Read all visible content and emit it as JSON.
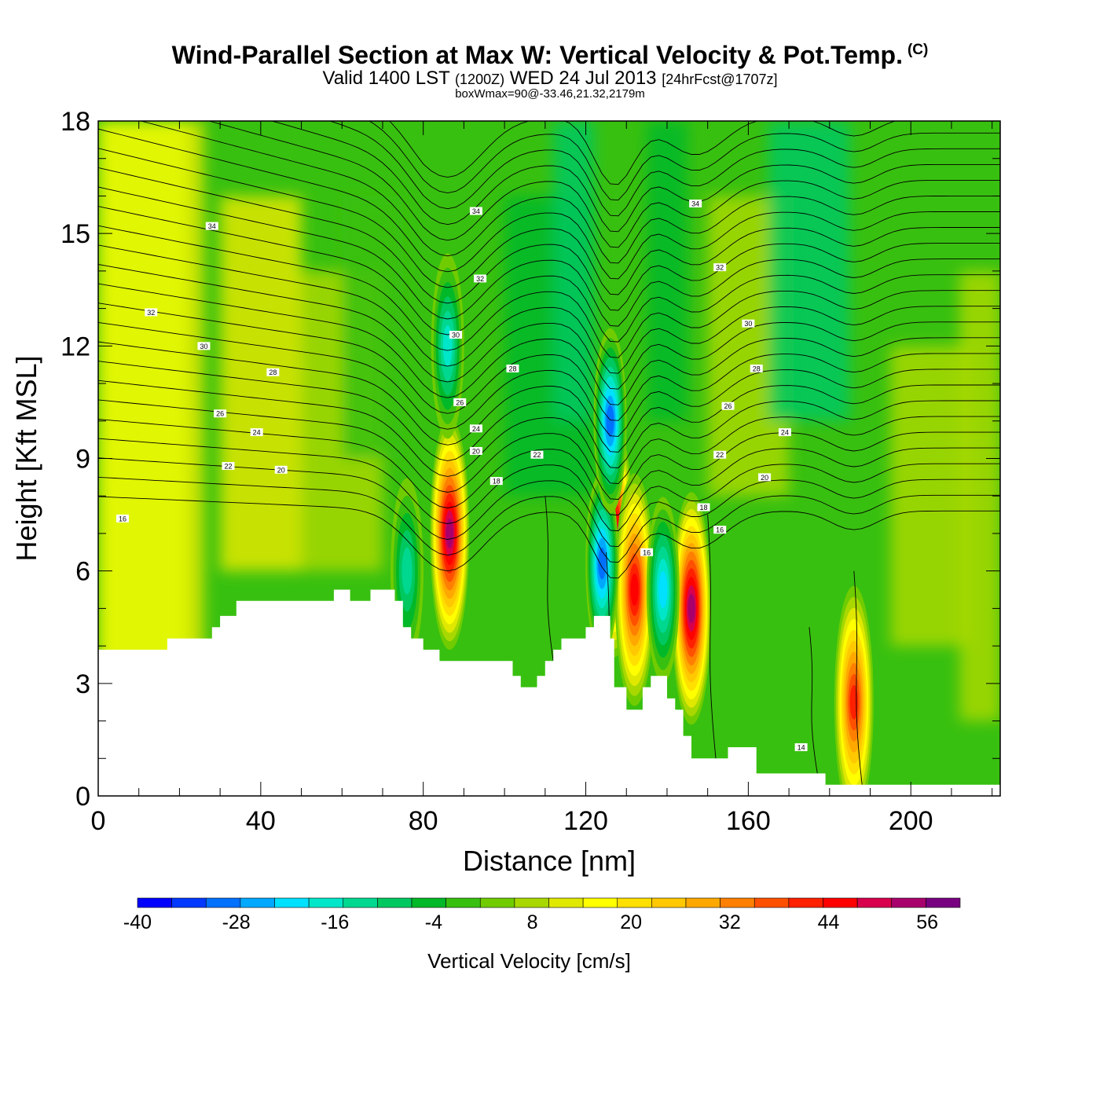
{
  "header": {
    "title": "Wind-Parallel Section at Max W: Vertical Velocity & Pot.Temp.",
    "copyright_mark": "(C)",
    "valid_prefix": "Valid 1400 LST",
    "valid_utc": "(1200Z)",
    "valid_date": "WED 24 Jul 2013",
    "forecast_tag": "[24hrFcst@1707z]",
    "box_info": "boxWmax=90@-33.46,21.32,2179m"
  },
  "chart_data": {
    "type": "heatmap",
    "xlabel": "Distance [nm]",
    "ylabel": "Height [Kft MSL]",
    "xlim": [
      0,
      222
    ],
    "ylim": [
      0,
      18
    ],
    "x_ticks": [
      0,
      40,
      80,
      120,
      160,
      200
    ],
    "y_ticks": [
      0,
      3,
      6,
      9,
      12,
      15,
      18
    ],
    "colorbar": {
      "label": "Vertical Velocity [cm/s]",
      "range": [
        -40,
        60
      ],
      "step": 4,
      "tick_labels": [
        "-40",
        "-28",
        "-16",
        "-4",
        "8",
        "20",
        "32",
        "44",
        "56"
      ],
      "colors": [
        "#0000ff",
        "#0038ff",
        "#0070ff",
        "#00a8ff",
        "#00e0ff",
        "#00e6c8",
        "#00d890",
        "#00c860",
        "#00b828",
        "#38c010",
        "#70cc00",
        "#a8d800",
        "#e0e800",
        "#ffff00",
        "#ffe000",
        "#ffc800",
        "#ffa800",
        "#ff8000",
        "#ff5000",
        "#ff2000",
        "#ff0000",
        "#d8004c",
        "#a8006c",
        "#780080"
      ]
    },
    "terrain_profile": [
      [
        0,
        3.9
      ],
      [
        17,
        3.9
      ],
      [
        17,
        4.2
      ],
      [
        28,
        4.2
      ],
      [
        28,
        4.5
      ],
      [
        30,
        4.5
      ],
      [
        30,
        4.8
      ],
      [
        34,
        4.8
      ],
      [
        34,
        5.2
      ],
      [
        58,
        5.2
      ],
      [
        58,
        5.5
      ],
      [
        62,
        5.5
      ],
      [
        62,
        5.2
      ],
      [
        67,
        5.2
      ],
      [
        67,
        5.5
      ],
      [
        73,
        5.5
      ],
      [
        73,
        5.2
      ],
      [
        75,
        5.2
      ],
      [
        75,
        4.5
      ],
      [
        77,
        4.5
      ],
      [
        77,
        4.2
      ],
      [
        80,
        4.2
      ],
      [
        80,
        3.9
      ],
      [
        84,
        3.9
      ],
      [
        84,
        3.6
      ],
      [
        102,
        3.6
      ],
      [
        102,
        3.2
      ],
      [
        104,
        3.2
      ],
      [
        104,
        2.9
      ],
      [
        108,
        2.9
      ],
      [
        108,
        3.2
      ],
      [
        110,
        3.2
      ],
      [
        110,
        3.6
      ],
      [
        112,
        3.6
      ],
      [
        112,
        3.9
      ],
      [
        114,
        3.9
      ],
      [
        114,
        4.2
      ],
      [
        120,
        4.2
      ],
      [
        120,
        4.5
      ],
      [
        122,
        4.5
      ],
      [
        122,
        4.8
      ],
      [
        126,
        4.8
      ],
      [
        126,
        4.2
      ],
      [
        127,
        4.2
      ],
      [
        127,
        2.9
      ],
      [
        130,
        2.9
      ],
      [
        130,
        2.3
      ],
      [
        134,
        2.3
      ],
      [
        134,
        2.9
      ],
      [
        136,
        2.9
      ],
      [
        136,
        3.2
      ],
      [
        140,
        3.2
      ],
      [
        140,
        2.6
      ],
      [
        142,
        2.6
      ],
      [
        142,
        2.3
      ],
      [
        144,
        2.3
      ],
      [
        144,
        1.6
      ],
      [
        146,
        1.6
      ],
      [
        146,
        1.0
      ],
      [
        155,
        1.0
      ],
      [
        155,
        1.3
      ],
      [
        162,
        1.3
      ],
      [
        162,
        0.6
      ],
      [
        179,
        0.6
      ],
      [
        179,
        0.3
      ],
      [
        222,
        0.3
      ]
    ],
    "w_cores": [
      {
        "x": 86.5,
        "y": 7.0,
        "peak": 48,
        "note": "updraft"
      },
      {
        "x": 127,
        "y": 6.8,
        "peak": 46,
        "note": "updraft"
      },
      {
        "x": 132,
        "y": 5.5,
        "peak": 40,
        "note": "updraft"
      },
      {
        "x": 146,
        "y": 5.0,
        "peak": 48,
        "note": "updraft"
      },
      {
        "x": 186,
        "y": 2.5,
        "peak": 36,
        "note": "updraft"
      },
      {
        "x": 124,
        "y": 6.2,
        "peak": -30,
        "note": "downdraft"
      },
      {
        "x": 126,
        "y": 10.0,
        "peak": -30,
        "note": "downdraft"
      },
      {
        "x": 139,
        "y": 5.5,
        "peak": -24,
        "note": "downdraft"
      },
      {
        "x": 86,
        "y": 12.0,
        "peak": -20,
        "note": "downdraft"
      },
      {
        "x": 76,
        "y": 6.0,
        "peak": -16,
        "note": "downdraft"
      }
    ],
    "contour_labels": [
      {
        "x": 6,
        "y": 7.4,
        "text": "16"
      },
      {
        "x": 32,
        "y": 8.8,
        "text": "22"
      },
      {
        "x": 45,
        "y": 8.7,
        "text": "20"
      },
      {
        "x": 39,
        "y": 9.7,
        "text": "24"
      },
      {
        "x": 30,
        "y": 10.2,
        "text": "26"
      },
      {
        "x": 43,
        "y": 11.3,
        "text": "28"
      },
      {
        "x": 26,
        "y": 12.0,
        "text": "30"
      },
      {
        "x": 13,
        "y": 12.9,
        "text": "32"
      },
      {
        "x": 28,
        "y": 15.2,
        "text": "34"
      },
      {
        "x": 93,
        "y": 15.6,
        "text": "34"
      },
      {
        "x": 94,
        "y": 13.8,
        "text": "32"
      },
      {
        "x": 88,
        "y": 12.3,
        "text": "30"
      },
      {
        "x": 102,
        "y": 11.4,
        "text": "28"
      },
      {
        "x": 89,
        "y": 10.5,
        "text": "26"
      },
      {
        "x": 93,
        "y": 9.8,
        "text": "24"
      },
      {
        "x": 93,
        "y": 9.2,
        "text": "20"
      },
      {
        "x": 108,
        "y": 9.1,
        "text": "22"
      },
      {
        "x": 98,
        "y": 8.4,
        "text": "18"
      },
      {
        "x": 147,
        "y": 15.8,
        "text": "34"
      },
      {
        "x": 153,
        "y": 14.1,
        "text": "32"
      },
      {
        "x": 160,
        "y": 12.6,
        "text": "30"
      },
      {
        "x": 162,
        "y": 11.4,
        "text": "28"
      },
      {
        "x": 155,
        "y": 10.4,
        "text": "26"
      },
      {
        "x": 169,
        "y": 9.7,
        "text": "24"
      },
      {
        "x": 153,
        "y": 9.1,
        "text": "22"
      },
      {
        "x": 164,
        "y": 8.5,
        "text": "20"
      },
      {
        "x": 149,
        "y": 7.7,
        "text": "18"
      },
      {
        "x": 153,
        "y": 7.1,
        "text": "16"
      },
      {
        "x": 135,
        "y": 6.5,
        "text": "16"
      },
      {
        "x": 173,
        "y": 1.3,
        "text": "14"
      }
    ]
  }
}
